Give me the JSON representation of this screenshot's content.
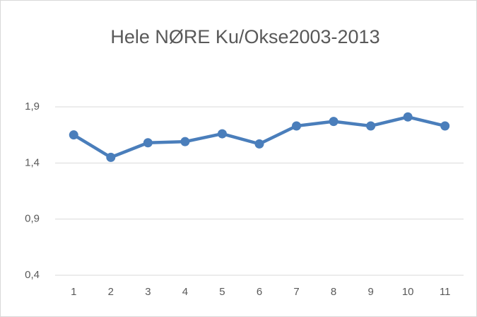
{
  "chart_data": {
    "type": "line",
    "title": "Hele NØRE Ku/Okse2003-2013",
    "categories": [
      "1",
      "2",
      "3",
      "4",
      "5",
      "6",
      "7",
      "8",
      "9",
      "10",
      "11"
    ],
    "series": [
      {
        "color": "#4a7ebb",
        "values": [
          1.65,
          1.45,
          1.58,
          1.59,
          1.66,
          1.57,
          1.73,
          1.77,
          1.73,
          1.81,
          1.73
        ]
      }
    ],
    "ylim": [
      0.4,
      1.9
    ],
    "yticks": [
      {
        "value": 0.4,
        "label": "0,4"
      },
      {
        "value": 0.9,
        "label": "0,9"
      },
      {
        "value": 1.4,
        "label": "1,4"
      },
      {
        "value": 1.9,
        "label": "1,9"
      }
    ],
    "grid": true
  }
}
